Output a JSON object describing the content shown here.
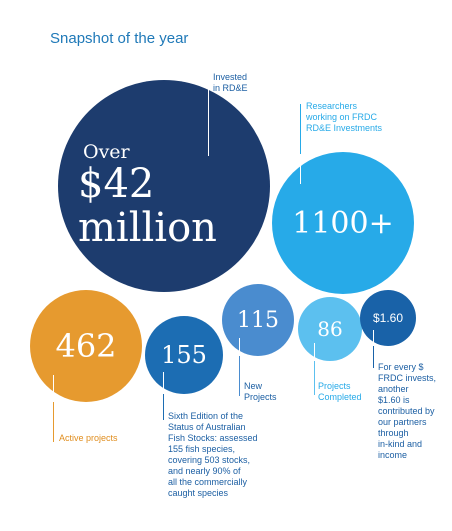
{
  "title": "Snapshot of the year",
  "colors": {
    "navy": "#1d3c6e",
    "sky": "#27aae8",
    "orange": "#e69a2f",
    "blue": "#1c6db3",
    "mid_blue": "#4a8ccf",
    "light_blue": "#5cc0ef",
    "dark_blue": "#1962a8",
    "label_blue": "#1c5fa3",
    "label_orange": "#e08e1f"
  },
  "bubbles": {
    "investment": {
      "prefix": "Over",
      "value": "$42",
      "unit": "million",
      "label": "Invested\nin RD&E"
    },
    "researchers": {
      "value": "1100+",
      "label": "Researchers\nworking on FRDC\nRD&E Investments"
    },
    "active": {
      "value": "462",
      "label": "Active projects"
    },
    "fish_stocks": {
      "value": "155",
      "label": "Sixth Edition of the\nStatus of Australian\nFish Stocks: assessed\n155 fish species,\ncovering 503 stocks,\nand nearly 90% of\nall the commercially\ncaught species"
    },
    "new_projects": {
      "value": "115",
      "label": "New\nProjects"
    },
    "completed": {
      "value": "86",
      "label": "Projects\nCompleted"
    },
    "partners": {
      "value": "$1.60",
      "label": "For every $\nFRDC invests,\nanother\n$1.60 is\ncontributed by\nour partners\nthrough\nin-kind and\nincome"
    }
  }
}
